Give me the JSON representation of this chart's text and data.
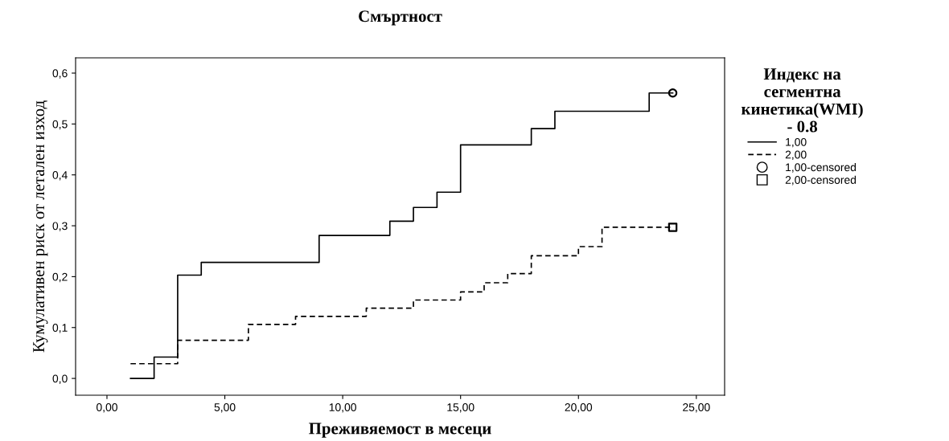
{
  "chart_data": {
    "type": "step",
    "title": "Смъртност",
    "xlabel": "Преживяемост в месеци",
    "ylabel": "Кумулативен риск от летален изход",
    "legend_title": "Индекс на\nсегментна\nкинетика(WMI)\n- 0.8",
    "legend": "right",
    "grid": false,
    "xlim": [
      -1.33,
      26.2
    ],
    "xticks": [
      {
        "value": 0,
        "label": "0,00"
      },
      {
        "value": 5,
        "label": "5,00"
      },
      {
        "value": 10,
        "label": "10,00"
      },
      {
        "value": 15,
        "label": "15,00"
      },
      {
        "value": 20,
        "label": "20,00"
      },
      {
        "value": 25,
        "label": "25,00"
      }
    ],
    "ylim": [
      -0.033,
      0.63
    ],
    "yticks": [
      {
        "value": 0,
        "label": "0,0"
      },
      {
        "value": 0.1,
        "label": "0,1"
      },
      {
        "value": 0.2,
        "label": "0,2"
      },
      {
        "value": 0.3,
        "label": "0,3"
      },
      {
        "value": 0.4,
        "label": "0,4"
      },
      {
        "value": 0.5,
        "label": "0,5"
      },
      {
        "value": 0.6,
        "label": "0,6"
      }
    ],
    "series": [
      {
        "name": "1,00",
        "line_style": "solid",
        "color": "#000000",
        "x": [
          1,
          2,
          3,
          4,
          9,
          12,
          13,
          14,
          15,
          18,
          19,
          23,
          24
        ],
        "values": [
          0,
          0.042,
          0.203,
          0.228,
          0.281,
          0.309,
          0.336,
          0.366,
          0.459,
          0.491,
          0.525,
          0.561,
          0.561
        ]
      },
      {
        "name": "2,00",
        "line_style": "dashed",
        "color": "#000000",
        "x": [
          1,
          3,
          6,
          8,
          11,
          13,
          15,
          16,
          17,
          18,
          20,
          21,
          24
        ],
        "values": [
          0.029,
          0.075,
          0.106,
          0.122,
          0.138,
          0.154,
          0.17,
          0.188,
          0.206,
          0.241,
          0.259,
          0.297,
          0.297
        ]
      },
      {
        "name": "1,00-censored",
        "type": "scatter",
        "marker": "circle",
        "color": "#000000",
        "x": [
          24
        ],
        "values": [
          0.561
        ]
      },
      {
        "name": "2,00-censored",
        "type": "scatter",
        "marker": "square",
        "color": "#000000",
        "x": [
          24
        ],
        "values": [
          0.297
        ]
      }
    ]
  }
}
